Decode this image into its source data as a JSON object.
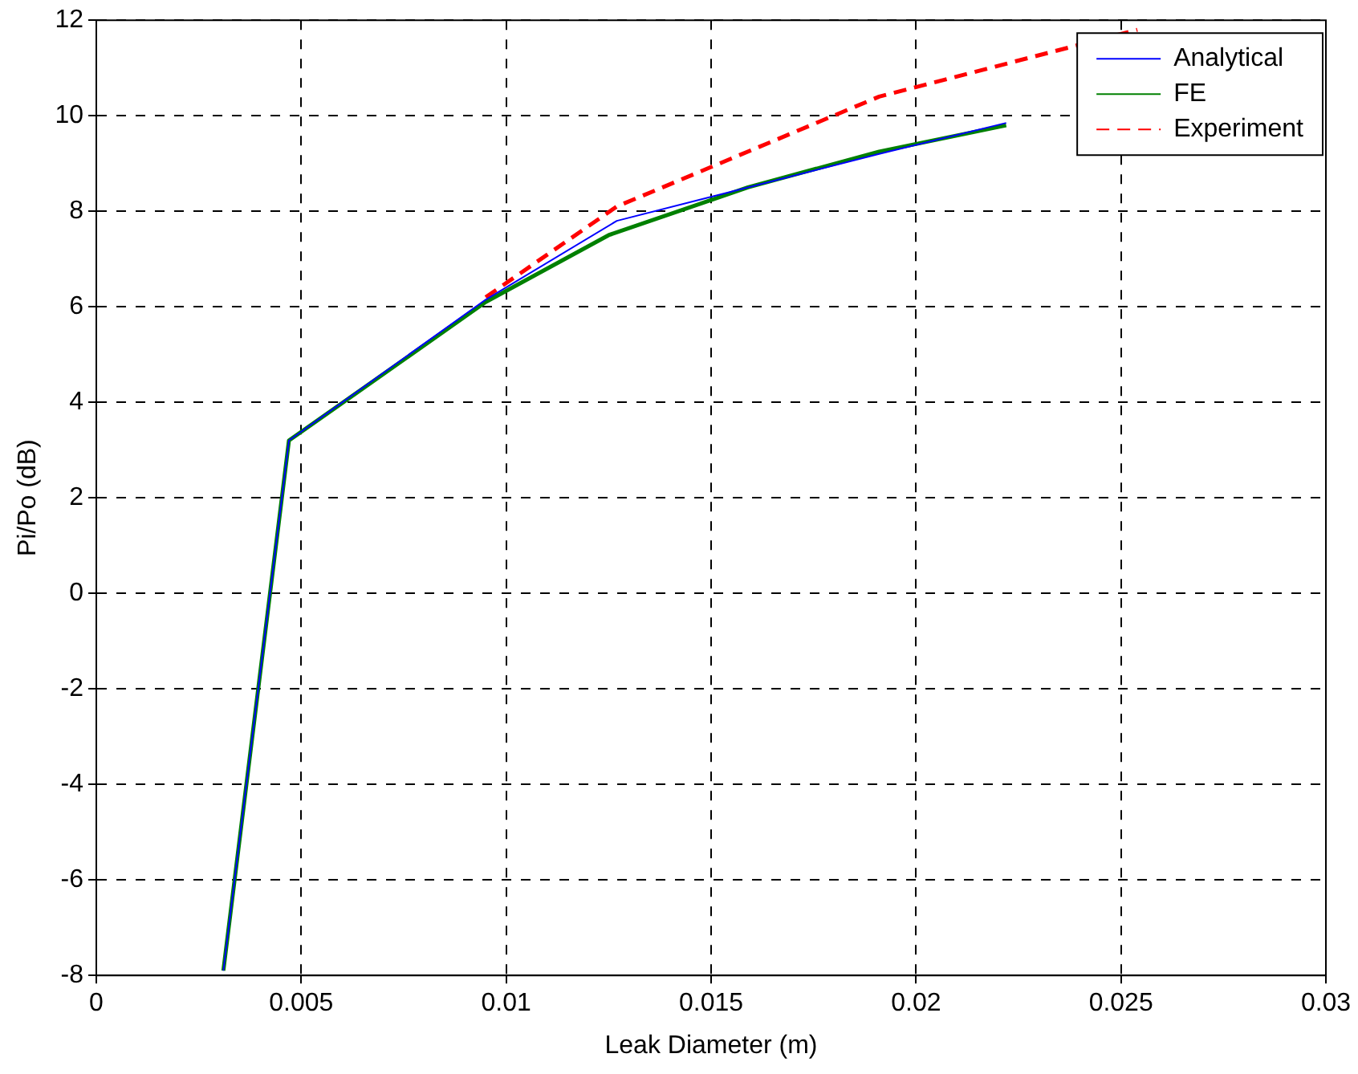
{
  "chart_data": {
    "type": "line",
    "xlabel": "Leak Diameter (m)",
    "ylabel": "Pi/Po (dB)",
    "xlim": [
      0,
      0.03
    ],
    "xticks": [
      0,
      0.005,
      0.01,
      0.015,
      0.02,
      0.025,
      0.03
    ],
    "ylim": [
      -8,
      12
    ],
    "yticks": [
      -8,
      -6,
      -4,
      -2,
      0,
      2,
      4,
      6,
      8,
      10,
      12
    ],
    "grid": true,
    "legend": "top right",
    "marker": "none",
    "series": [
      {
        "name": "Analytical",
        "color": "#0000ff",
        "line_style": "solid",
        "x": [
          0.0031,
          0.0047,
          0.0095,
          0.0127,
          0.0159,
          0.0191,
          0.0222
        ],
        "values": [
          -7.9,
          3.2,
          6.15,
          7.8,
          8.5,
          9.2,
          9.85
        ]
      },
      {
        "name": "FE",
        "color": "#008000",
        "line_style": "solid",
        "x": [
          0.0031,
          0.0047,
          0.0095,
          0.0125,
          0.0159,
          0.0191,
          0.0222
        ],
        "values": [
          -7.9,
          3.2,
          6.1,
          7.5,
          8.5,
          9.25,
          9.8
        ]
      },
      {
        "name": "Experiment",
        "color": "#ff0000",
        "line_style": "dashed",
        "x": [
          0.0095,
          0.0127,
          0.0191,
          0.0254
        ],
        "values": [
          6.2,
          8.1,
          10.4,
          11.8
        ]
      }
    ]
  }
}
